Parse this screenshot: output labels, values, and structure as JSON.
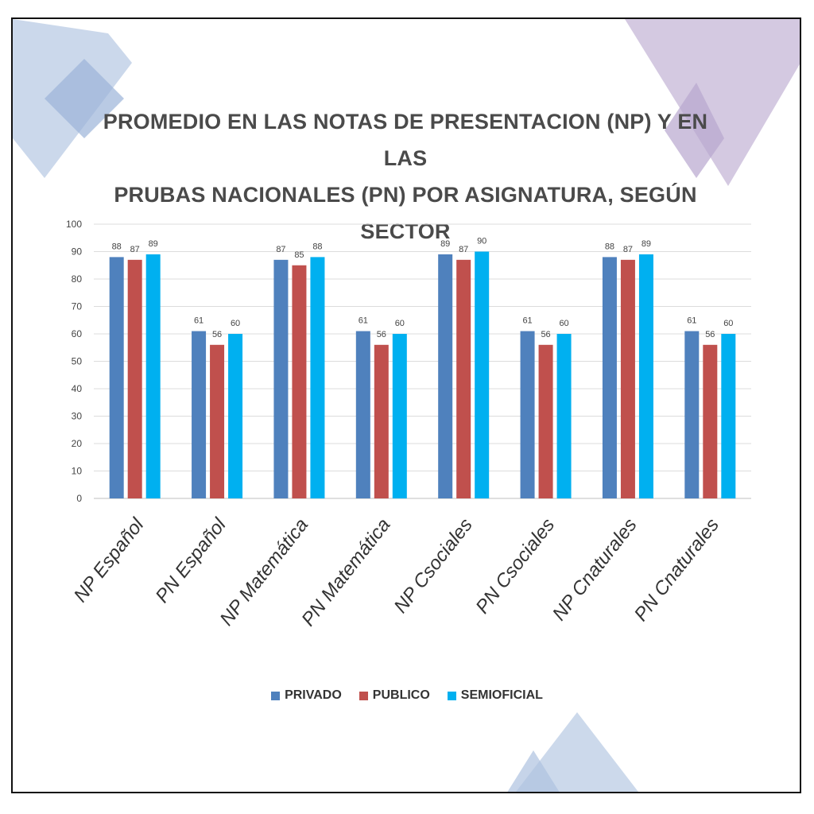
{
  "chart_data": {
    "type": "bar",
    "title": "PROMEDIO EN LAS NOTAS DE PRESENTACION (NP) Y EN LAS PRUBAS NACIONALES (PN) POR ASIGNATURA, SEGÚN SECTOR",
    "title_lines": [
      "PROMEDIO EN LAS NOTAS DE PRESENTACION (NP) Y EN LAS",
      "PRUBAS NACIONALES (PN) POR ASIGNATURA, SEGÚN",
      "SECTOR"
    ],
    "categories": [
      "NP Español",
      "PN Español",
      "NP Matemática",
      "PN Matemática",
      "NP Csociales",
      "PN Csociales",
      "NP Cnaturales",
      "PN Cnaturales"
    ],
    "series": [
      {
        "name": "PRIVADO",
        "color": "#4f81bd",
        "values": [
          88,
          61,
          87,
          61,
          89,
          61,
          88,
          61
        ]
      },
      {
        "name": "PUBLICO",
        "color": "#c0504d",
        "values": [
          87,
          56,
          85,
          56,
          87,
          56,
          87,
          56
        ]
      },
      {
        "name": "SEMIOFICIAL",
        "color": "#00b0f0",
        "values": [
          89,
          60,
          88,
          60,
          90,
          60,
          89,
          60
        ]
      }
    ],
    "ylim": [
      0,
      100
    ],
    "yticks": [
      "0",
      "10",
      "20",
      "30",
      "40",
      "50",
      "60",
      "70",
      "80",
      "90",
      "100"
    ],
    "grid": true,
    "legend_position": "bottom"
  }
}
